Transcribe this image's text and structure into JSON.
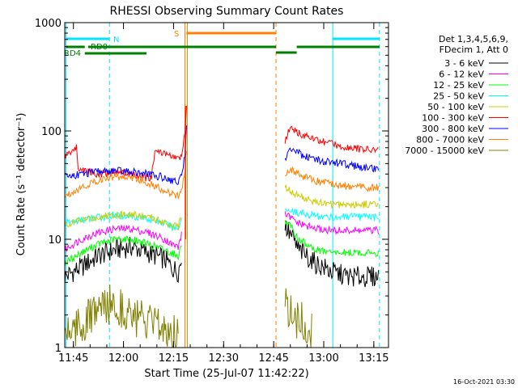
{
  "chart_data": {
    "type": "line",
    "title": "RHESSI Observing Summary Count Rates",
    "xlabel": "Start Time (25-Jul-07 11:42:22)",
    "ylabel": "Count Rate (s⁻¹ detector⁻¹)",
    "yscale": "log",
    "ylim": [
      1,
      1000
    ],
    "xlim_minutes": [
      0,
      97
    ],
    "x_ticks": [
      {
        "label": "11:45",
        "t": 2.6
      },
      {
        "label": "12:00",
        "t": 17.6
      },
      {
        "label": "12:15",
        "t": 32.6
      },
      {
        "label": "12:30",
        "t": 47.6
      },
      {
        "label": "12:45",
        "t": 62.6
      },
      {
        "label": "13:00",
        "t": 77.6
      },
      {
        "label": "13:15",
        "t": 92.6
      }
    ],
    "y_ticks": [
      {
        "label": "1",
        "v": 1
      },
      {
        "label": "10",
        "v": 10
      },
      {
        "label": "100",
        "v": 100
      },
      {
        "label": "1000",
        "v": 1000
      }
    ],
    "legend_header": [
      "Det 1,3,4,5,6,9,",
      "FDecim 1, Att 0"
    ],
    "legend_position": "right",
    "footer_date": "16-Oct-2021 03:30",
    "flags": [
      {
        "label": "N",
        "color": "#00e5ff"
      },
      {
        "label": "RD0",
        "color": "#008000"
      },
      {
        "label": "RD4",
        "color": "#008000"
      },
      {
        "label": "S",
        "color": "#ff8000"
      }
    ],
    "vertical_markers": {
      "night_start_t": 13.4,
      "night_end_t": 80.3,
      "saa_start_t": 36.0,
      "saa_end_t": 63.3,
      "edge_lines_t": [
        0.4,
        94.3
      ],
      "colors": {
        "night": "#00e5ff",
        "saa": "#ff8000"
      }
    },
    "series": [
      {
        "name": "3 - 6 keV",
        "color": "#000000",
        "seg1": [
          [
            0,
            4.5
          ],
          [
            5,
            5.5
          ],
          [
            10,
            7
          ],
          [
            15,
            8
          ],
          [
            20,
            8.5
          ],
          [
            25,
            7.5
          ],
          [
            30,
            6.5
          ],
          [
            32,
            5.5
          ],
          [
            34,
            5
          ],
          [
            35,
            6.5
          ]
        ],
        "seg2": [
          [
            66,
            13
          ],
          [
            70,
            8
          ],
          [
            75,
            6
          ],
          [
            80,
            5
          ],
          [
            85,
            4.5
          ],
          [
            90,
            4.5
          ],
          [
            94,
            4.5
          ]
        ]
      },
      {
        "name": "6 - 12 keV",
        "color": "#ff00ff",
        "seg1": [
          [
            0,
            8
          ],
          [
            5,
            10
          ],
          [
            10,
            11.5
          ],
          [
            15,
            12.5
          ],
          [
            20,
            12.5
          ],
          [
            25,
            11.5
          ],
          [
            30,
            10
          ],
          [
            32,
            9
          ],
          [
            34,
            8.5
          ],
          [
            35,
            11
          ]
        ],
        "seg2": [
          [
            66,
            17
          ],
          [
            70,
            14
          ],
          [
            75,
            12.5
          ],
          [
            80,
            12
          ],
          [
            85,
            12
          ],
          [
            90,
            12
          ],
          [
            94,
            12
          ]
        ]
      },
      {
        "name": "12 - 25 keV",
        "color": "#00ff00",
        "seg1": [
          [
            0,
            6
          ],
          [
            5,
            7.5
          ],
          [
            10,
            9
          ],
          [
            15,
            10
          ],
          [
            20,
            10
          ],
          [
            25,
            9
          ],
          [
            30,
            8
          ],
          [
            32,
            7.5
          ],
          [
            34,
            7
          ],
          [
            35,
            9
          ]
        ],
        "seg2": [
          [
            66,
            15
          ],
          [
            70,
            10
          ],
          [
            75,
            8
          ],
          [
            80,
            7.5
          ],
          [
            85,
            7.5
          ],
          [
            90,
            7.5
          ],
          [
            94,
            7.5
          ]
        ]
      },
      {
        "name": "25 - 50 keV",
        "color": "#00ffff",
        "seg1": [
          [
            0,
            14
          ],
          [
            5,
            15
          ],
          [
            10,
            16
          ],
          [
            15,
            16.5
          ],
          [
            20,
            16.5
          ],
          [
            25,
            15.5
          ],
          [
            30,
            14
          ],
          [
            32,
            13
          ],
          [
            34,
            12.5
          ],
          [
            35,
            16
          ]
        ],
        "seg2": [
          [
            66,
            19
          ],
          [
            70,
            17.5
          ],
          [
            75,
            16.5
          ],
          [
            80,
            16
          ],
          [
            85,
            16
          ],
          [
            90,
            16
          ],
          [
            94,
            16
          ]
        ]
      },
      {
        "name": "50 - 100 keV",
        "color": "#cccc00",
        "seg1": [
          [
            0,
            13.5
          ],
          [
            5,
            15
          ],
          [
            10,
            16
          ],
          [
            15,
            17
          ],
          [
            20,
            17
          ],
          [
            25,
            16
          ],
          [
            30,
            14.5
          ],
          [
            32,
            13.5
          ],
          [
            34,
            13
          ],
          [
            35,
            16
          ]
        ],
        "seg2": [
          [
            66,
            30
          ],
          [
            70,
            25
          ],
          [
            75,
            22
          ],
          [
            80,
            21
          ],
          [
            85,
            21
          ],
          [
            90,
            21
          ],
          [
            94,
            21
          ]
        ]
      },
      {
        "name": "100 - 300 keV",
        "color": "#ff0000",
        "seg1": [
          [
            0,
            58
          ],
          [
            2,
            65
          ],
          [
            3.5,
            70
          ],
          [
            4,
            45
          ],
          [
            10,
            40
          ],
          [
            16,
            42
          ],
          [
            22,
            38
          ],
          [
            26,
            36
          ],
          [
            27,
            65
          ],
          [
            30,
            62
          ],
          [
            32,
            58
          ],
          [
            34,
            55
          ],
          [
            35,
            60
          ],
          [
            36,
            90
          ],
          [
            36.5,
            165
          ]
        ],
        "seg2": [
          [
            66,
            80
          ],
          [
            67.5,
            105
          ],
          [
            72,
            90
          ],
          [
            78,
            78
          ],
          [
            84,
            72
          ],
          [
            90,
            67
          ],
          [
            94,
            66
          ]
        ]
      },
      {
        "name": "300 - 800 keV",
        "color": "#0000ff",
        "seg1": [
          [
            0,
            38
          ],
          [
            5,
            40
          ],
          [
            10,
            42
          ],
          [
            15,
            43
          ],
          [
            20,
            42
          ],
          [
            25,
            40
          ],
          [
            30,
            37
          ],
          [
            32,
            35
          ],
          [
            34,
            34
          ],
          [
            35,
            38
          ],
          [
            36,
            60
          ],
          [
            36.5,
            110
          ]
        ],
        "seg2": [
          [
            66,
            55
          ],
          [
            67.5,
            68
          ],
          [
            72,
            58
          ],
          [
            78,
            52
          ],
          [
            84,
            49
          ],
          [
            90,
            46
          ],
          [
            94,
            45
          ]
        ]
      },
      {
        "name": "800 - 7000 keV",
        "color": "#ff8000",
        "seg1": [
          [
            0,
            25
          ],
          [
            5,
            30
          ],
          [
            10,
            35
          ],
          [
            15,
            38
          ],
          [
            20,
            37
          ],
          [
            25,
            33
          ],
          [
            30,
            28
          ],
          [
            32,
            26
          ],
          [
            34,
            25
          ],
          [
            35,
            28
          ],
          [
            36,
            42
          ],
          [
            36.5,
            70
          ]
        ],
        "seg2": [
          [
            66,
            40
          ],
          [
            67.5,
            45
          ],
          [
            72,
            37
          ],
          [
            78,
            33
          ],
          [
            84,
            31
          ],
          [
            90,
            30
          ],
          [
            94,
            30
          ]
        ]
      },
      {
        "name": "7000 - 15000 keV",
        "color": "#808000",
        "seg1": [
          [
            0,
            1.5
          ],
          [
            5,
            1.6
          ],
          [
            10,
            2.2
          ],
          [
            15,
            2.6
          ],
          [
            20,
            2
          ],
          [
            25,
            1.6
          ],
          [
            30,
            1.5
          ],
          [
            34,
            1.4
          ]
        ],
        "seg2": [
          [
            66,
            2.5
          ],
          [
            70,
            1.8
          ],
          [
            74,
            1.4
          ]
        ]
      }
    ]
  }
}
